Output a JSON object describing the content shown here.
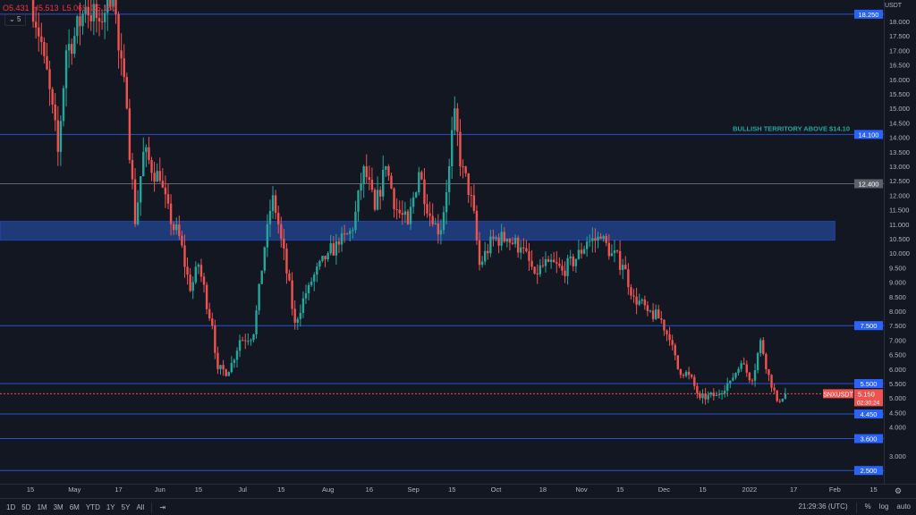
{
  "legend": {
    "open": "O5.431",
    "high": "H5.513",
    "low": "L5.069",
    "close": "C5.150",
    "indicators_count": "5"
  },
  "bottom_bar": {
    "ranges": [
      "1D",
      "5D",
      "1M",
      "3M",
      "6M",
      "YTD",
      "1Y",
      "5Y",
      "All"
    ],
    "clock": "21:29:36 (UTC)",
    "percent": "%",
    "log": "log",
    "auto": "auto"
  },
  "colors": {
    "up": "#26a69a",
    "down": "#ef5350",
    "level": "#2962ff",
    "zone": "#1e3a78",
    "background": "#131722",
    "annotation": "#26a69a"
  },
  "chart_data": {
    "type": "candlestick",
    "symbol": "SNXUSDT",
    "currency": "USDT",
    "ylim": [
      2.0,
      19.0
    ],
    "y_ticks": [
      3.0,
      4.0,
      4.5,
      5.0,
      5.5,
      6.0,
      6.5,
      7.0,
      7.5,
      8.0,
      8.5,
      9.0,
      9.5,
      10.0,
      10.5,
      11.0,
      11.5,
      12.0,
      12.5,
      13.0,
      13.5,
      14.0,
      14.5,
      15.0,
      15.5,
      16.0,
      16.5,
      17.0,
      17.5,
      18.0
    ],
    "x_ticks": [
      [
        "2021-04-15",
        "15"
      ],
      [
        "2021-05-01",
        "May"
      ],
      [
        "2021-05-17",
        "17"
      ],
      [
        "2021-06-01",
        "Jun"
      ],
      [
        "2021-06-15",
        "15"
      ],
      [
        "2021-07-01",
        "Jul"
      ],
      [
        "2021-07-15",
        "15"
      ],
      [
        "2021-08-01",
        "Aug"
      ],
      [
        "2021-08-16",
        "16"
      ],
      [
        "2021-09-01",
        "Sep"
      ],
      [
        "2021-09-15",
        "15"
      ],
      [
        "2021-10-01",
        "Oct"
      ],
      [
        "2021-10-18",
        "18"
      ],
      [
        "2021-11-01",
        "Nov"
      ],
      [
        "2021-11-15",
        "15"
      ],
      [
        "2021-12-01",
        "Dec"
      ],
      [
        "2021-12-15",
        "15"
      ],
      [
        "2022-01-01",
        "2022"
      ],
      [
        "2022-01-17",
        "17"
      ],
      [
        "2022-02-01",
        "Feb"
      ],
      [
        "2022-02-15",
        "15"
      ]
    ],
    "close_anchors": [
      [
        "2021-04-15",
        19.0
      ],
      [
        "2021-04-20",
        16.8
      ],
      [
        "2021-04-25",
        13.5
      ],
      [
        "2021-04-28",
        17.0
      ],
      [
        "2021-05-01",
        17.5
      ],
      [
        "2021-05-05",
        18.5
      ],
      [
        "2021-05-10",
        18.0
      ],
      [
        "2021-05-15",
        19.2
      ],
      [
        "2021-05-17",
        17.0
      ],
      [
        "2021-05-20",
        15.0
      ],
      [
        "2021-05-23",
        11.0
      ],
      [
        "2021-05-26",
        13.5
      ],
      [
        "2021-06-01",
        12.5
      ],
      [
        "2021-06-05",
        11.0
      ],
      [
        "2021-06-08",
        10.6
      ],
      [
        "2021-06-12",
        8.7
      ],
      [
        "2021-06-15",
        9.6
      ],
      [
        "2021-06-20",
        7.5
      ],
      [
        "2021-06-22",
        6.0
      ],
      [
        "2021-06-26",
        5.9
      ],
      [
        "2021-06-30",
        7.0
      ],
      [
        "2021-07-05",
        7.2
      ],
      [
        "2021-07-10",
        11.0
      ],
      [
        "2021-07-12",
        12.0
      ],
      [
        "2021-07-15",
        10.5
      ],
      [
        "2021-07-20",
        7.6
      ],
      [
        "2021-07-25",
        8.9
      ],
      [
        "2021-08-01",
        10.0
      ],
      [
        "2021-08-05",
        10.3
      ],
      [
        "2021-08-10",
        10.8
      ],
      [
        "2021-08-14",
        13.0
      ],
      [
        "2021-08-18",
        11.5
      ],
      [
        "2021-08-22",
        13.0
      ],
      [
        "2021-08-26",
        11.5
      ],
      [
        "2021-08-30",
        11.0
      ],
      [
        "2021-09-03",
        12.8
      ],
      [
        "2021-09-08",
        11.0
      ],
      [
        "2021-09-11",
        10.8
      ],
      [
        "2021-09-14",
        13.0
      ],
      [
        "2021-09-16",
        15.0
      ],
      [
        "2021-09-18",
        13.0
      ],
      [
        "2021-09-22",
        12.0
      ],
      [
        "2021-09-25",
        9.6
      ],
      [
        "2021-09-30",
        10.5
      ],
      [
        "2021-10-05",
        10.5
      ],
      [
        "2021-10-10",
        10.2
      ],
      [
        "2021-10-15",
        9.3
      ],
      [
        "2021-10-20",
        9.7
      ],
      [
        "2021-10-25",
        9.4
      ],
      [
        "2021-10-30",
        9.8
      ],
      [
        "2021-11-03",
        10.4
      ],
      [
        "2021-11-08",
        10.5
      ],
      [
        "2021-11-12",
        10.0
      ],
      [
        "2021-11-16",
        9.6
      ],
      [
        "2021-11-20",
        8.5
      ],
      [
        "2021-11-25",
        8.0
      ],
      [
        "2021-11-30",
        7.7
      ],
      [
        "2021-12-03",
        7.0
      ],
      [
        "2021-12-06",
        6.0
      ],
      [
        "2021-12-10",
        5.8
      ],
      [
        "2021-12-14",
        5.0
      ],
      [
        "2021-12-20",
        5.1
      ],
      [
        "2021-12-25",
        5.6
      ],
      [
        "2021-12-29",
        6.2
      ],
      [
        "2022-01-02",
        5.6
      ],
      [
        "2022-01-05",
        7.0
      ],
      [
        "2022-01-08",
        5.8
      ],
      [
        "2022-01-11",
        4.9
      ],
      [
        "2022-01-14",
        5.15
      ]
    ],
    "last_price": {
      "symbol_label": "SNXUSDT",
      "value": "5.150",
      "countdown": "02:30:24",
      "price": 5.15
    },
    "levels": [
      {
        "price": 18.25,
        "label": "18.250",
        "kind": "blue"
      },
      {
        "price": 14.1,
        "label": "14.100",
        "kind": "blue"
      },
      {
        "price": 12.4,
        "label": "12.400",
        "kind": "grey"
      },
      {
        "price": 7.5,
        "label": "7.500",
        "kind": "blue"
      },
      {
        "price": 5.5,
        "label": "5.500",
        "kind": "blue"
      },
      {
        "price": 4.45,
        "label": "4.450",
        "kind": "blue"
      },
      {
        "price": 3.6,
        "label": "3.600",
        "kind": "blue"
      },
      {
        "price": 2.5,
        "label": "2.500",
        "kind": "blue"
      }
    ],
    "zone": {
      "low": 10.45,
      "high": 11.1,
      "end": "2022-02-01"
    },
    "annotation": "BULLISH TERRITORY ABOVE $14.10"
  }
}
